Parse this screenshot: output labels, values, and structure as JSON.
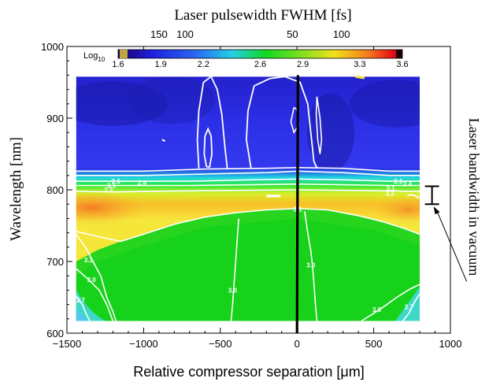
{
  "chart_data": {
    "type": "heatmap",
    "title": "",
    "xlabel": "Relative compressor separation [μm]",
    "ylabel": "Wavelength [nm]",
    "xlim": [
      -1500,
      1000
    ],
    "ylim": [
      600,
      1000
    ],
    "x_ticks": [
      -1500,
      -1000,
      -500,
      0,
      500,
      1000
    ],
    "x_tick_labels": [
      "−1500",
      "−1000",
      "−500",
      "0",
      "500",
      "1000"
    ],
    "y_ticks": [
      600,
      700,
      800,
      900,
      1000
    ],
    "top_axis": {
      "label": "Laser pulsewidth FWHM [fs]",
      "ticks": [
        {
          "label": "150",
          "x": -900
        },
        {
          "label": "100",
          "x": -730
        },
        {
          "label": "50",
          "x": -30
        },
        {
          "label": "100",
          "x": 290
        }
      ]
    },
    "right_axis": {
      "label": "Laser bandwidth in vacuum",
      "bar_range": [
        780,
        805
      ]
    },
    "colorbar": {
      "label_prefix": "Log",
      "label_subscript": "10",
      "range": [
        1.6,
        3.6
      ],
      "ticks": [
        1.6,
        1.9,
        2.2,
        2.6,
        2.9,
        3.3,
        3.6
      ]
    },
    "data_extent": {
      "x": [
        -1440,
        800
      ],
      "y": [
        617,
        960
      ]
    },
    "zero_separation_line": {
      "x_bottom": 0,
      "x_top": 6,
      "y_range": [
        600,
        960
      ]
    },
    "contour_labels": [
      {
        "text": "2.1",
        "x": -1180,
        "y": 812
      },
      {
        "text": "2.4",
        "x": -1010,
        "y": 810
      },
      {
        "text": "3.1",
        "x": -1210,
        "y": 806
      },
      {
        "text": "3.3",
        "x": -1230,
        "y": 800
      },
      {
        "text": "2.1",
        "x": 660,
        "y": 812
      },
      {
        "text": "2.4",
        "x": 720,
        "y": 808
      },
      {
        "text": "3.1",
        "x": 610,
        "y": 802
      },
      {
        "text": "3.3",
        "x": 605,
        "y": 795
      },
      {
        "text": "3.1",
        "x": 5,
        "y": 773
      },
      {
        "text": "3.3",
        "x": -1360,
        "y": 702
      },
      {
        "text": "3.0",
        "x": -1340,
        "y": 675
      },
      {
        "text": "2.7",
        "x": -1410,
        "y": 646
      },
      {
        "text": "3.0",
        "x": -420,
        "y": 660
      },
      {
        "text": "3.0",
        "x": 90,
        "y": 695
      },
      {
        "text": "3.0",
        "x": 520,
        "y": 633
      },
      {
        "text": "2.7",
        "x": 730,
        "y": 637
      }
    ]
  }
}
